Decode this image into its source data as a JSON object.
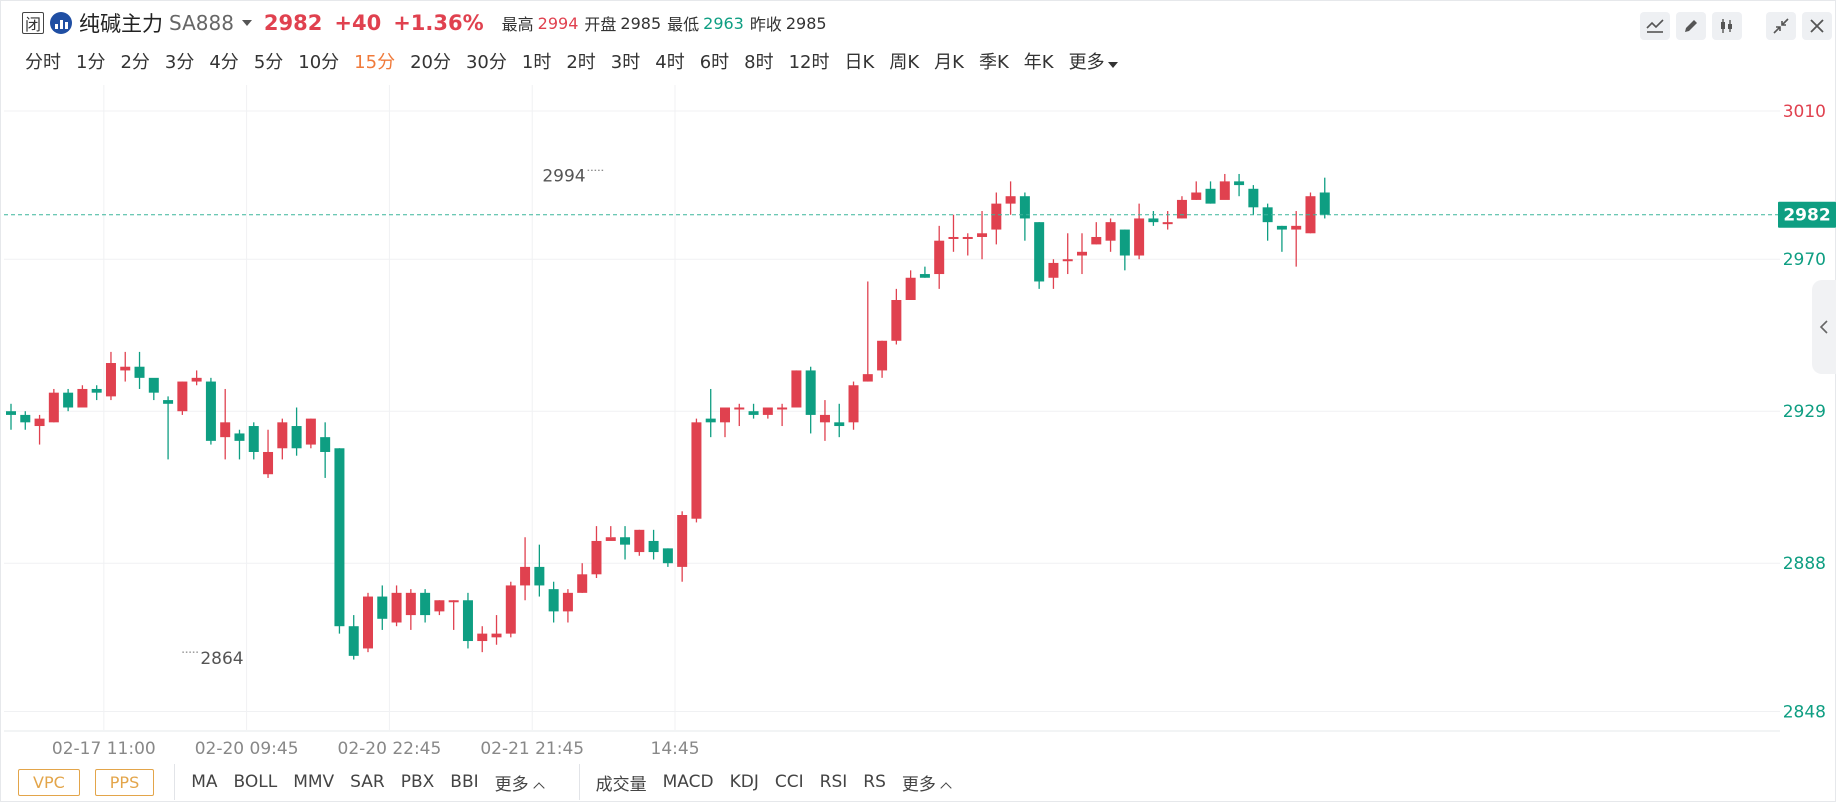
{
  "header": {
    "closed_badge": "闭",
    "exchange_icon": "exchange-logo-icon",
    "name": "纯碱主力",
    "code": "SA888",
    "last": "2982",
    "change": "+40",
    "change_pct": "+1.36%",
    "high_label": "最高",
    "high": "2994",
    "open_label": "开盘",
    "open": "2985",
    "low_label": "最低",
    "low": "2963",
    "prev_label": "昨收",
    "prev": "2985"
  },
  "toolbar": {
    "icons": [
      "indicator-line-icon",
      "draw-pen-icon",
      "candle-type-icon",
      "collapse-icon",
      "close-icon"
    ]
  },
  "periods": [
    "分时",
    "1分",
    "2分",
    "3分",
    "4分",
    "5分",
    "10分",
    "15分",
    "20分",
    "30分",
    "1时",
    "2时",
    "3时",
    "4时",
    "6时",
    "8时",
    "12时",
    "日K",
    "周K",
    "月K",
    "季K",
    "年K",
    "更多"
  ],
  "active_period": "15分",
  "bottom": {
    "boxes": [
      "VPC",
      "PPS"
    ],
    "main_indicators": [
      "MA",
      "BOLL",
      "MMV",
      "SAR",
      "PBX",
      "BBI",
      "更多"
    ],
    "sub_indicators": [
      "成交量",
      "MACD",
      "KDJ",
      "CCI",
      "RSI",
      "RS",
      "更多"
    ]
  },
  "chart_data": {
    "type": "candlestick",
    "title": "",
    "xlabel": "",
    "ylabel": "",
    "ylim": [
      2843,
      3017
    ],
    "y_ticks": [
      3010,
      2970,
      2929,
      2888,
      2848
    ],
    "x_tick_labels": [
      {
        "label": "02-17 11:00",
        "index": 6.5
      },
      {
        "label": "02-20 09:45",
        "index": 16.5
      },
      {
        "label": "02-20 22:45",
        "index": 26.5
      },
      {
        "label": "02-21 21:45",
        "index": 36.5
      },
      {
        "label": "14:45",
        "index": 46.5
      }
    ],
    "current_price": 2982,
    "grid": true,
    "annotations": [
      {
        "label": "2994",
        "index": 41.5,
        "value": 2994,
        "side": "left"
      },
      {
        "label": "2864",
        "index": 12,
        "value": 2864,
        "side": "right"
      }
    ],
    "candles": [
      [
        2929,
        2928,
        2931,
        2924
      ],
      [
        2928,
        2926,
        2929,
        2924
      ],
      [
        2925,
        2927,
        2928,
        2920
      ],
      [
        2926,
        2934,
        2935,
        2926
      ],
      [
        2934,
        2930,
        2935,
        2929
      ],
      [
        2930,
        2935,
        2936,
        2930
      ],
      [
        2935,
        2934,
        2936,
        2932
      ],
      [
        2933,
        2942,
        2945,
        2932
      ],
      [
        2940,
        2941,
        2945,
        2937
      ],
      [
        2941,
        2938,
        2945,
        2935
      ],
      [
        2938,
        2934,
        2936,
        2932
      ],
      [
        2932,
        2931,
        2933,
        2916
      ],
      [
        2929,
        2937,
        2937,
        2928
      ],
      [
        2937,
        2938,
        2940,
        2936
      ],
      [
        2937,
        2921,
        2938,
        2920
      ],
      [
        2922,
        2926,
        2935,
        2916
      ],
      [
        2923,
        2921,
        2924,
        2916
      ],
      [
        2925,
        2918,
        2926,
        2916
      ],
      [
        2912,
        2918,
        2924,
        2911
      ],
      [
        2919,
        2926,
        2927,
        2916
      ],
      [
        2925,
        2919,
        2930,
        2917
      ],
      [
        2920,
        2927,
        2927,
        2919
      ],
      [
        2922,
        2918,
        2926,
        2911
      ],
      [
        2919,
        2871,
        2919,
        2869
      ],
      [
        2871,
        2863,
        2874,
        2862
      ],
      [
        2865,
        2879,
        2880,
        2864
      ],
      [
        2879,
        2873,
        2882,
        2870
      ],
      [
        2872,
        2880,
        2882,
        2871
      ],
      [
        2874,
        2880,
        2881,
        2870
      ],
      [
        2880,
        2874,
        2881,
        2872
      ],
      [
        2875,
        2878,
        2878,
        2874
      ],
      [
        2878,
        2878,
        2878,
        2870
      ],
      [
        2878,
        2867,
        2880,
        2865
      ],
      [
        2867,
        2869,
        2871,
        2864
      ],
      [
        2868,
        2869,
        2874,
        2866
      ],
      [
        2869,
        2882,
        2883,
        2868
      ],
      [
        2882,
        2887,
        2895,
        2878
      ],
      [
        2887,
        2882,
        2893,
        2879
      ],
      [
        2881,
        2875,
        2883,
        2872
      ],
      [
        2875,
        2880,
        2881,
        2872
      ],
      [
        2880,
        2885,
        2888,
        2880
      ],
      [
        2885,
        2894,
        2898,
        2884
      ],
      [
        2894,
        2895,
        2898,
        2895
      ],
      [
        2895,
        2893,
        2898,
        2889
      ],
      [
        2891,
        2897,
        2897,
        2890
      ],
      [
        2894,
        2891,
        2897,
        2889
      ],
      [
        2892,
        2888,
        2892,
        2887
      ],
      [
        2887,
        2901,
        2902,
        2883
      ],
      [
        2900,
        2926,
        2927,
        2899
      ],
      [
        2927,
        2926,
        2935,
        2922
      ],
      [
        2926,
        2930,
        2930,
        2922
      ],
      [
        2930,
        2930,
        2931,
        2925
      ],
      [
        2929,
        2928,
        2931,
        2927
      ],
      [
        2928,
        2930,
        2930,
        2927
      ],
      [
        2930,
        2930,
        2931,
        2925
      ],
      [
        2930,
        2940,
        2940,
        2930
      ],
      [
        2940,
        2928,
        2941,
        2923
      ],
      [
        2926,
        2928,
        2932,
        2921
      ],
      [
        2926,
        2925,
        2931,
        2922
      ],
      [
        2926,
        2936,
        2937,
        2924
      ],
      [
        2937,
        2939,
        2964,
        2937
      ],
      [
        2940,
        2948,
        2948,
        2938
      ],
      [
        2948,
        2959,
        2962,
        2947
      ],
      [
        2959,
        2965,
        2967,
        2959
      ],
      [
        2966,
        2965,
        2968,
        2965
      ],
      [
        2966,
        2975,
        2979,
        2962
      ],
      [
        2976,
        2976,
        2982,
        2972
      ],
      [
        2976,
        2976,
        2977,
        2971
      ],
      [
        2976,
        2977,
        2983,
        2970
      ],
      [
        2978,
        2985,
        2988,
        2974
      ],
      [
        2985,
        2987,
        2991,
        2982
      ],
      [
        2987,
        2981,
        2988,
        2975
      ],
      [
        2980,
        2964,
        2980,
        2962
      ],
      [
        2965,
        2969,
        2970,
        2962
      ],
      [
        2970,
        2970,
        2977,
        2966
      ],
      [
        2971,
        2972,
        2977,
        2966
      ],
      [
        2974,
        2976,
        2980,
        2974
      ],
      [
        2975,
        2980,
        2981,
        2972
      ],
      [
        2978,
        2971,
        2978,
        2967
      ],
      [
        2971,
        2981,
        2985,
        2970
      ],
      [
        2981,
        2980,
        2983,
        2979
      ],
      [
        2980,
        2980,
        2983,
        2978
      ],
      [
        2981,
        2986,
        2987,
        2981
      ],
      [
        2986,
        2988,
        2991,
        2986
      ],
      [
        2989,
        2985,
        2991,
        2985
      ],
      [
        2986,
        2991,
        2993,
        2987
      ],
      [
        2991,
        2990,
        2993,
        2987
      ],
      [
        2989,
        2984,
        2990,
        2982
      ],
      [
        2984,
        2980,
        2985,
        2975
      ],
      [
        2979,
        2978,
        2979,
        2972
      ],
      [
        2978,
        2979,
        2983,
        2968
      ],
      [
        2977,
        2987,
        2988,
        2977
      ],
      [
        2988,
        2982,
        2992,
        2981
      ]
    ]
  }
}
